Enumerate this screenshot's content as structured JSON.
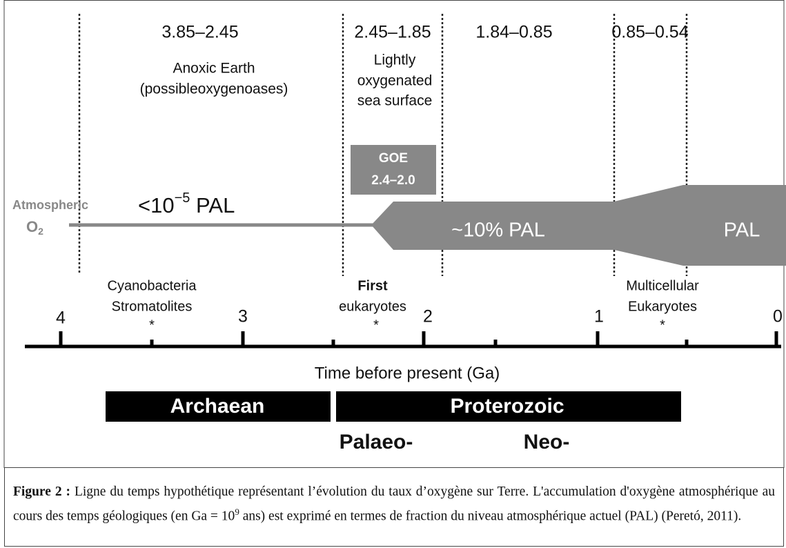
{
  "periods": [
    "3.85–2.45",
    "2.45–1.85",
    "1.84–0.85",
    "0.85–0.54"
  ],
  "anoxic": [
    "Anoxic Earth",
    "(possibleoxygenoases)"
  ],
  "lightly": [
    "Lightly",
    "oxygenated",
    "sea surface"
  ],
  "goe": [
    "GOE",
    "2.4–2.0"
  ],
  "atmospheric": {
    "label": "Atmospheric",
    "o": "O",
    "sub": "2"
  },
  "low_level": {
    "base": "<10",
    "exp": "−5",
    "unit": " PAL"
  },
  "mid_level": "~10% PAL",
  "high_level": "PAL",
  "events": [
    {
      "lines": [
        "Cyanobacteria",
        "Stromatolites"
      ],
      "marker": "*"
    },
    {
      "lines": [
        "First",
        "eukaryotes"
      ],
      "marker": "*"
    },
    {
      "lines": [
        "Multicellular",
        "Eukaryotes"
      ],
      "marker": "*"
    }
  ],
  "ticks": [
    "4",
    "3",
    "2",
    "1",
    "0"
  ],
  "axis_label": "Time before present (Ga)",
  "eons": [
    "Archaean",
    "Proterozoic"
  ],
  "eras": [
    "Palaeo-",
    "Neo-"
  ],
  "caption": {
    "label": "Figure 2 :",
    "text": " Ligne du temps hypothétique représentant l’évolution du taux d’oxygène sur Terre. L'accumulation d'oxygène atmosphérique au cours des temps géologiques (en Ga = 10",
    "sup": "9",
    "rest": " ans) est exprimé en termes de fraction du niveau atmosphérique actuel (PAL) (Peretó, 2011)."
  }
}
